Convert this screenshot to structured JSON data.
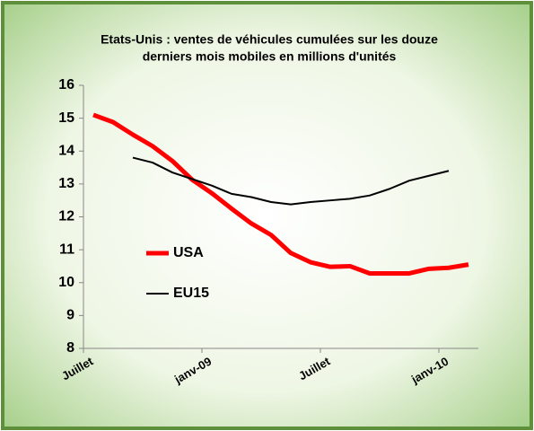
{
  "chart_data": {
    "type": "line",
    "title": "Etats-Unis : ventes de véhicules  cumulées sur les douze",
    "subtitle": "derniers mois mobiles en millions d'unités",
    "categories": [
      "Juillet",
      null,
      null,
      null,
      null,
      null,
      "janv-09",
      null,
      null,
      null,
      null,
      null,
      "Juillet",
      null,
      null,
      null,
      null,
      null,
      "janv-10",
      null
    ],
    "series": [
      {
        "name": "USA",
        "color": "#ff0000",
        "values": [
          15.1,
          14.88,
          14.5,
          14.15,
          13.7,
          13.13,
          12.72,
          12.25,
          11.8,
          11.45,
          10.9,
          10.62,
          10.48,
          10.5,
          10.28,
          10.28,
          10.28,
          10.42,
          10.45,
          10.55
        ]
      },
      {
        "name": "EU15",
        "color": "#000000",
        "values": [
          null,
          null,
          13.8,
          13.65,
          13.35,
          13.15,
          12.95,
          12.7,
          12.6,
          12.45,
          12.38,
          12.45,
          12.5,
          12.55,
          12.65,
          12.85,
          13.1,
          13.25,
          13.4,
          null
        ]
      }
    ],
    "ylim": [
      8,
      16
    ],
    "yticks": [
      8,
      9,
      10,
      11,
      12,
      13,
      14,
      15,
      16
    ],
    "grid": false,
    "legend": "left"
  }
}
